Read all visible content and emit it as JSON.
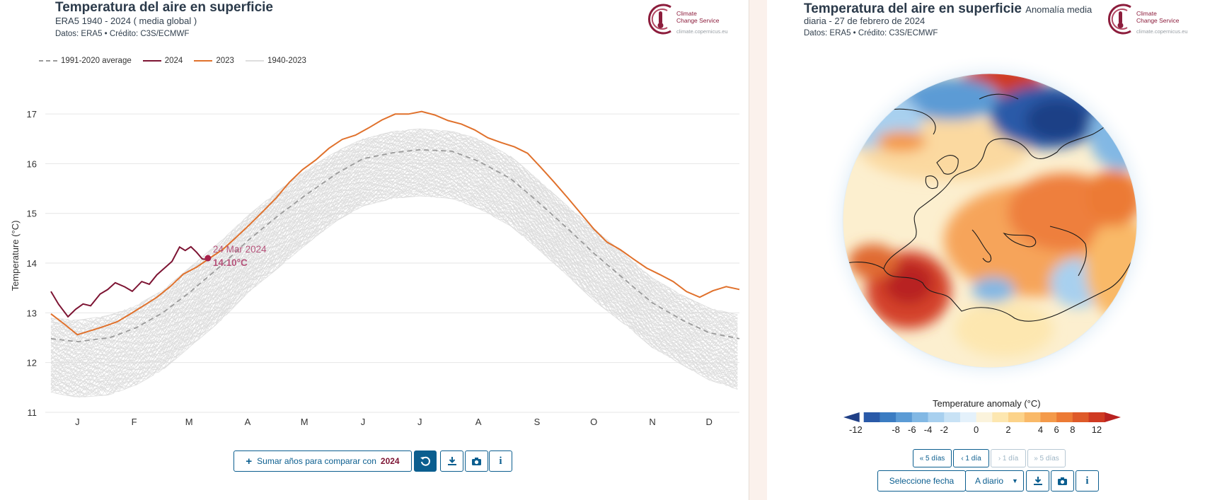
{
  "left_chart": {
    "title": "Temperatura del aire en superficie",
    "subtitle": "ERA5 1940 - 2024 ( media global )",
    "credit": "Datos: ERA5 • Crédito: C3S/ECMWF",
    "logo": {
      "line1": "Climate",
      "line2": "Change Service",
      "url": "climate.copernicus.eu"
    },
    "legend": [
      {
        "label": "1991-2020 average",
        "color": "#9a9a9a",
        "style": "dashed"
      },
      {
        "label": "2024",
        "color": "#7d1433",
        "style": "solid"
      },
      {
        "label": "2023",
        "color": "#e0712c",
        "style": "solid"
      },
      {
        "label": "1940-2023",
        "color": "#dedede",
        "style": "solid"
      }
    ],
    "tooltip": {
      "date": "24 Mar 2024",
      "value": "14.10°C"
    },
    "controls": {
      "compare_label": "Sumar años para comparar con",
      "compare_year": "2024",
      "reset_icon": "reset-icon",
      "download_icon": "download-icon",
      "camera_icon": "camera-icon",
      "info_icon": "info-icon"
    }
  },
  "chart_data": {
    "type": "line",
    "title": "Temperatura del aire en superficie",
    "xlabel": "",
    "ylabel": "Temperature (°C)",
    "ylim": [
      11,
      17.3
    ],
    "yticks": [
      "11",
      "12",
      "13",
      "14",
      "15",
      "16",
      "17"
    ],
    "categories": [
      "J",
      "F",
      "M",
      "A",
      "M",
      "J",
      "J",
      "A",
      "S",
      "O",
      "N",
      "D"
    ],
    "grid": true,
    "legend_position": "top-left",
    "series": [
      {
        "name": "1991-2020 average",
        "color": "#9a9a9a",
        "style": "dashed",
        "x": [
          1,
          15,
          32,
          46,
          60,
          74,
          91,
          105,
          121,
          135,
          152,
          166,
          182,
          196,
          213,
          227,
          244,
          258,
          274,
          288,
          305,
          319,
          335,
          349,
          365
        ],
        "values": [
          12.48,
          12.42,
          12.5,
          12.7,
          13.0,
          13.4,
          13.95,
          14.45,
          14.95,
          15.35,
          15.8,
          16.1,
          16.22,
          16.28,
          16.25,
          16.05,
          15.7,
          15.25,
          14.7,
          14.2,
          13.65,
          13.2,
          12.85,
          12.6,
          12.48
        ]
      },
      {
        "name": "2024",
        "color": "#7d1433",
        "style": "solid",
        "x": [
          1,
          5,
          10,
          14,
          18,
          22,
          27,
          31,
          35,
          40,
          44,
          49,
          53,
          57,
          61,
          65,
          69,
          72,
          75,
          78,
          81,
          84
        ],
        "values": [
          13.4,
          13.15,
          12.95,
          13.1,
          13.2,
          13.15,
          13.35,
          13.45,
          13.6,
          13.55,
          13.45,
          13.6,
          13.55,
          13.75,
          13.9,
          14.05,
          14.35,
          14.25,
          14.3,
          14.2,
          14.1,
          14.1
        ]
      },
      {
        "name": "2023",
        "color": "#e0712c",
        "style": "solid",
        "x": [
          1,
          8,
          15,
          22,
          29,
          36,
          43,
          50,
          57,
          64,
          71,
          78,
          85,
          92,
          99,
          106,
          113,
          120,
          127,
          134,
          141,
          148,
          155,
          162,
          169,
          176,
          183,
          190,
          197,
          204,
          211,
          218,
          225,
          232,
          239,
          246,
          253,
          260,
          267,
          274,
          281,
          288,
          295,
          302,
          309,
          316,
          323,
          330,
          337,
          344,
          351,
          358,
          365
        ],
        "values": [
          12.95,
          12.75,
          12.55,
          12.65,
          12.75,
          12.85,
          13.0,
          13.15,
          13.3,
          13.5,
          13.75,
          13.9,
          14.1,
          14.3,
          14.55,
          14.8,
          15.05,
          15.3,
          15.6,
          15.85,
          16.05,
          16.3,
          16.5,
          16.6,
          16.75,
          16.9,
          17.0,
          16.98,
          17.02,
          16.95,
          16.85,
          16.8,
          16.7,
          16.55,
          16.45,
          16.35,
          16.2,
          15.9,
          15.6,
          15.3,
          15.0,
          14.7,
          14.45,
          14.3,
          14.1,
          13.9,
          13.75,
          13.6,
          13.4,
          13.3,
          13.45,
          13.55,
          13.5
        ]
      }
    ],
    "historical_band": {
      "name": "1940-2023",
      "x": [
        1,
        15,
        32,
        46,
        60,
        74,
        91,
        105,
        121,
        135,
        152,
        166,
        182,
        196,
        213,
        227,
        244,
        258,
        274,
        288,
        305,
        319,
        335,
        349,
        365
      ],
      "low": [
        11.4,
        11.3,
        11.35,
        11.55,
        11.85,
        12.3,
        12.85,
        13.4,
        13.9,
        14.35,
        14.85,
        15.15,
        15.3,
        15.35,
        15.3,
        15.1,
        14.75,
        14.3,
        13.75,
        13.25,
        12.75,
        12.3,
        11.95,
        11.65,
        11.45
      ],
      "high": [
        12.9,
        12.85,
        12.95,
        13.15,
        13.45,
        13.9,
        14.45,
        14.95,
        15.45,
        15.85,
        16.25,
        16.5,
        16.65,
        16.7,
        16.65,
        16.5,
        16.15,
        15.7,
        15.15,
        14.7,
        14.15,
        13.7,
        13.35,
        13.1,
        12.95
      ]
    }
  },
  "right_map": {
    "title": "Temperatura del aire en superficie",
    "title_suffix": "Anomalía media",
    "subtitle": "diaria - 27 de febrero de 2024",
    "credit": "Datos: ERA5 • Crédito: C3S/ECMWF",
    "logo": {
      "line1": "Climate",
      "line2": "Change Service",
      "url": "climate.copernicus.eu"
    },
    "colorbar": {
      "title": "Temperature anomaly (°C)",
      "ticks": [
        "-12",
        "-8",
        "-6",
        "-4",
        "-2",
        "0",
        "2",
        "4",
        "6",
        "8",
        "12"
      ],
      "colors": [
        "#1f3f86",
        "#2a5aa8",
        "#3b7cc2",
        "#5b9bd5",
        "#82b8e4",
        "#a8d0ef",
        "#c8e2f5",
        "#e4f1fb",
        "#fbf3dc",
        "#fde7b0",
        "#fcd38a",
        "#f9b968",
        "#f49a4a",
        "#ec7a35",
        "#de5a29",
        "#cf3a22",
        "#b82220"
      ]
    },
    "nav": {
      "back5": "« 5 días",
      "back1": "‹ 1 día",
      "fwd1": "› 1 día",
      "fwd5": "» 5 días"
    },
    "controls": {
      "select_date": "Seleccione fecha",
      "frequency": "A diario",
      "download_icon": "download-icon",
      "camera_icon": "camera-icon",
      "info_icon": "info-icon"
    }
  }
}
